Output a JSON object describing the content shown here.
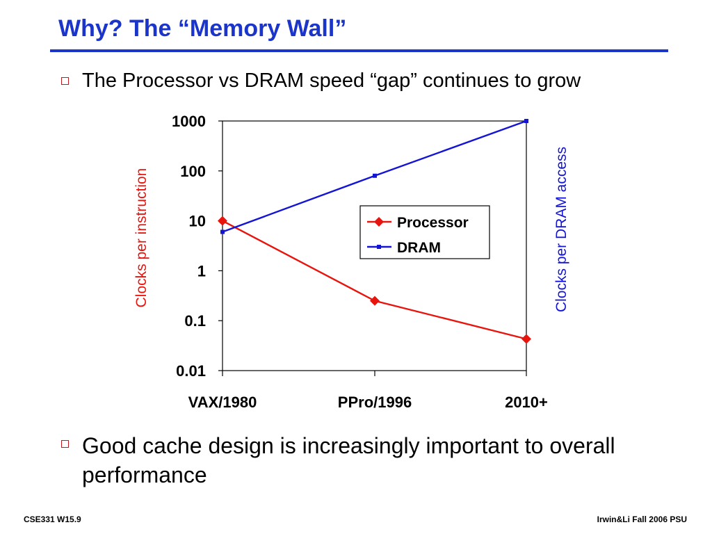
{
  "slide": {
    "title": "Why?  The “Memory Wall”",
    "bullets": [
      "The Processor vs DRAM speed “gap” continues to grow",
      "Good cache design is increasingly important to overall performance"
    ],
    "footer_left": "CSE331  W15.9",
    "footer_right": "Irwin&Li Fall 2006 PSU",
    "accent_color": "#1b34c9",
    "bullet_color": "#c0181c"
  },
  "chart_data": {
    "type": "line",
    "categories": [
      "VAX/1980",
      "PPro/1996",
      "2010+"
    ],
    "y_scale": "log",
    "ylim": [
      0.01,
      1000
    ],
    "y_ticks": [
      "1000",
      "100",
      "10",
      "1",
      "0.1",
      "0.01"
    ],
    "ylabel_left": "Clocks per instruction",
    "ylabel_right": "Clocks per DRAM access",
    "legend_position": "center-right",
    "grid": false,
    "series": [
      {
        "name": "Processor",
        "values": [
          10,
          0.25,
          0.043
        ],
        "color": "#e8140e",
        "marker": "diamond"
      },
      {
        "name": "DRAM",
        "values": [
          6,
          80,
          1000
        ],
        "color": "#1414d4",
        "marker": "square"
      }
    ]
  }
}
